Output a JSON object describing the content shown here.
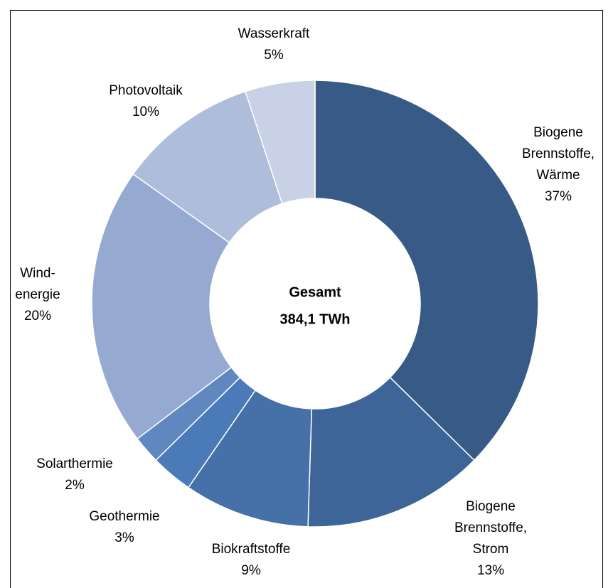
{
  "chart_data": {
    "type": "donut",
    "center_label": [
      "Gesamt",
      "384,1 TWh"
    ],
    "categories": [
      [
        "Biogene",
        "Brennstoffe,",
        "Wärme"
      ],
      [
        "Biogene",
        "Brennstoffe,",
        "Strom"
      ],
      [
        "Biokraftstoffe"
      ],
      [
        "Geothermie"
      ],
      [
        "Solarthermie"
      ],
      [
        "Wind-",
        "energie"
      ],
      [
        "Photovoltaik"
      ],
      [
        "Wasserkraft"
      ]
    ],
    "values": [
      37,
      13,
      9,
      3,
      2,
      20,
      10,
      5
    ],
    "value_labels": [
      "37%",
      "13%",
      "9%",
      "3%",
      "2%",
      "20%",
      "10%",
      "5%"
    ],
    "colors": [
      "#385a87",
      "#3d6597",
      "#4571a8",
      "#4a7ab8",
      "#6088c0",
      "#95a9d1",
      "#adbdda",
      "#c8d1e6"
    ]
  }
}
